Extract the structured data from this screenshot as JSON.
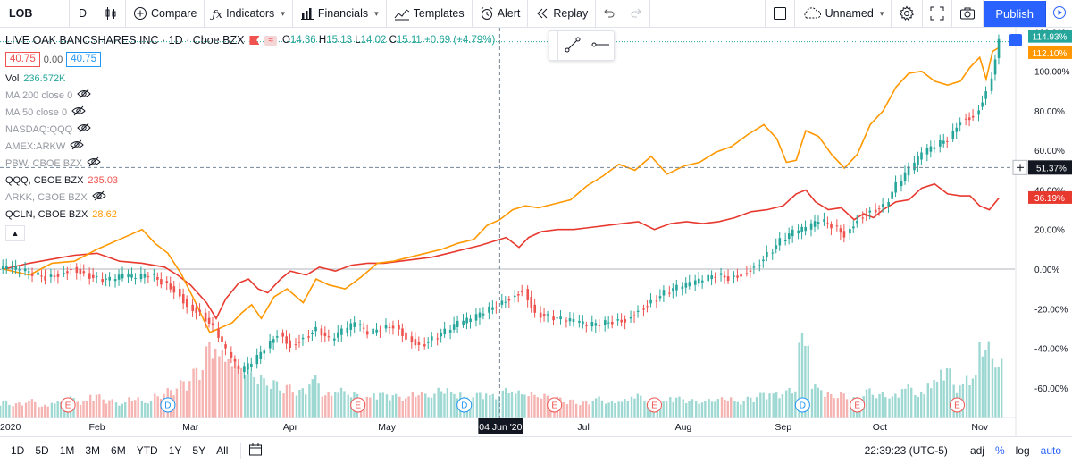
{
  "toolbar": {
    "symbol": "LOB",
    "interval": "D",
    "compare": "Compare",
    "indicators": "Indicators",
    "financials": "Financials",
    "templates": "Templates",
    "alert": "Alert",
    "replay": "Replay",
    "layout_name": "Unnamed",
    "publish": "Publish"
  },
  "legend": {
    "title": "LIVE OAK BANCSHARES INC · 1D · Cboe BZX",
    "badge": "≈",
    "ohlc": {
      "o_label": "O",
      "o": "14.36",
      "h_label": "H",
      "h": "15.13",
      "l_label": "L",
      "l": "14.02",
      "c_label": "C",
      "c": "15.11",
      "change": "+0.69 (+4.79%)"
    },
    "sell": "40.75",
    "spread": "0.00",
    "buy": "40.75",
    "indicators": [
      {
        "label": "Vol",
        "value": "236.572K",
        "on": true,
        "color": "green"
      },
      {
        "label": "MA 200 close 0",
        "value": "",
        "on": false
      },
      {
        "label": "MA 50 close 0",
        "value": "",
        "on": false
      },
      {
        "label": "NASDAQ:QQQ",
        "value": "",
        "on": false
      },
      {
        "label": "AMEX:ARKW",
        "value": "",
        "on": false
      },
      {
        "label": "PBW, CBOE BZX",
        "value": "",
        "on": false
      },
      {
        "label": "QQQ, CBOE BZX",
        "value": "235.03",
        "on": true,
        "color": "red"
      },
      {
        "label": "ARKK, CBOE BZX",
        "value": "",
        "on": false
      },
      {
        "label": "QCLN, CBOE BZX",
        "value": "28.62",
        "on": true,
        "color": "orange"
      }
    ]
  },
  "bottombar": {
    "ranges": [
      "1D",
      "5D",
      "1M",
      "3M",
      "6M",
      "YTD",
      "1Y",
      "5Y",
      "All"
    ],
    "time": "22:39:23 (UTC-5)",
    "adj": "adj",
    "pct": "%",
    "log": "log",
    "auto": "auto"
  },
  "colors": {
    "up": "#26a69a",
    "down": "#ef5350",
    "qqq": "#e8392f",
    "qcln": "#ff9800",
    "accent": "#2962ff"
  },
  "chart_data": {
    "type": "line",
    "scale": "percent",
    "ylim": [
      -75,
      122
    ],
    "y_ticks": [
      120,
      100,
      80,
      60,
      40,
      20,
      0,
      -20,
      -40,
      -60
    ],
    "y_tick_labels": [
      "120.00%",
      "100.00%",
      "80.00%",
      "60.00%",
      "40.00%",
      "20.00%",
      "0.00%",
      "-20.00%",
      "-40.00%",
      "-60.00%"
    ],
    "x_labels": [
      {
        "day": 0,
        "label": "2020"
      },
      {
        "day": 29,
        "label": "Feb"
      },
      {
        "day": 58,
        "label": "Mar"
      },
      {
        "day": 89,
        "label": "Apr"
      },
      {
        "day": 119,
        "label": "May"
      },
      {
        "day": 180,
        "label": "Jul"
      },
      {
        "day": 211,
        "label": "Aug"
      },
      {
        "day": 242,
        "label": "Sep"
      },
      {
        "day": 272,
        "label": "Oct"
      },
      {
        "day": 303,
        "label": "Nov"
      }
    ],
    "crosshair": {
      "day": 154,
      "label": "04 Jun '20",
      "y_value": 51.37,
      "y_label": "51.37%"
    },
    "last_values": [
      {
        "series": "LOB",
        "value": 114.93,
        "label": "114.93%"
      },
      {
        "series": "QCLN",
        "value": 112.1,
        "label": "112.10%"
      },
      {
        "series": "QQQ",
        "value": 36.19,
        "label": "36.19%"
      }
    ],
    "events": [
      {
        "day": 20,
        "type": "E"
      },
      {
        "day": 51,
        "type": "D"
      },
      {
        "day": 110,
        "type": "E"
      },
      {
        "day": 143,
        "type": "D"
      },
      {
        "day": 171,
        "type": "E"
      },
      {
        "day": 202,
        "type": "E"
      },
      {
        "day": 248,
        "type": "D"
      },
      {
        "day": 265,
        "type": "E"
      },
      {
        "day": 296,
        "type": "E"
      }
    ],
    "series": [
      {
        "name": "QQQ, CBOE BZX",
        "x": [
          0,
          8,
          15,
          22,
          29,
          36,
          43,
          50,
          54,
          58,
          63,
          66,
          69,
          73,
          76,
          79,
          82,
          86,
          89,
          94,
          98,
          103,
          108,
          113,
          118,
          123,
          128,
          133,
          138,
          143,
          148,
          152,
          156,
          160,
          163,
          167,
          172,
          177,
          182,
          187,
          192,
          197,
          202,
          207,
          212,
          217,
          222,
          227,
          232,
          237,
          242,
          246,
          249,
          252,
          256,
          260,
          264,
          267,
          270,
          273,
          277,
          281,
          285,
          289,
          293,
          297,
          300,
          303,
          306,
          309
        ],
        "values": [
          0,
          3,
          5,
          7,
          8,
          4,
          3,
          1,
          -3,
          -8,
          -17,
          -25,
          -15,
          -7,
          -5,
          -10,
          -12,
          -5,
          -1,
          -3,
          1,
          -1,
          2,
          3,
          3,
          4,
          5,
          6,
          8,
          10,
          12,
          14,
          16,
          11,
          16,
          19,
          20,
          20,
          21,
          22,
          23,
          24,
          20,
          23,
          24,
          23,
          24,
          26,
          29,
          30,
          32,
          38,
          40,
          34,
          30,
          31,
          25,
          28,
          26,
          30,
          34,
          35,
          41,
          43,
          38,
          37,
          37,
          32,
          30,
          36
        ]
      },
      {
        "name": "QCLN, CBOE BZX",
        "x": [
          0,
          8,
          15,
          22,
          29,
          36,
          43,
          47,
          51,
          55,
          59,
          64,
          67,
          71,
          74,
          77,
          80,
          84,
          88,
          93,
          97,
          101,
          106,
          111,
          116,
          121,
          126,
          131,
          136,
          141,
          146,
          150,
          154,
          158,
          162,
          166,
          171,
          176,
          181,
          186,
          191,
          196,
          201,
          206,
          211,
          216,
          221,
          226,
          231,
          236,
          240,
          243,
          246,
          249,
          253,
          257,
          261,
          265,
          269,
          273,
          277,
          281,
          285,
          289,
          293,
          297,
          300,
          303,
          305,
          307,
          309
        ],
        "values": [
          0,
          -3,
          3,
          4,
          10,
          15,
          20,
          13,
          8,
          -2,
          -15,
          -32,
          -30,
          -27,
          -22,
          -18,
          -25,
          -14,
          -10,
          -17,
          -5,
          -8,
          -10,
          -4,
          3,
          4,
          6,
          8,
          10,
          13,
          15,
          22,
          25,
          30,
          32,
          31,
          33,
          35,
          42,
          47,
          53,
          50,
          57,
          48,
          52,
          54,
          59,
          62,
          68,
          73,
          66,
          54,
          55,
          70,
          67,
          58,
          51,
          58,
          73,
          80,
          92,
          99,
          100,
          95,
          93,
          95,
          102,
          107,
          96,
          110,
          112
        ]
      }
    ],
    "candles": {
      "name": "LIVE OAK BANCSHARES INC",
      "x": [
        0,
        4,
        8,
        12,
        16,
        20,
        24,
        28,
        32,
        36,
        40,
        44,
        48,
        52,
        56,
        60,
        64,
        68,
        72,
        76,
        80,
        84,
        88,
        92,
        96,
        100,
        104,
        108,
        112,
        116,
        120,
        124,
        128,
        132,
        136,
        140,
        144,
        148,
        152,
        156,
        160,
        164,
        168,
        172,
        176,
        180,
        184,
        188,
        192,
        196,
        200,
        204,
        208,
        212,
        216,
        220,
        224,
        228,
        232,
        236,
        240,
        244,
        248,
        252,
        256,
        260,
        264,
        268,
        272,
        276,
        280,
        284,
        288,
        292,
        296,
        300,
        304,
        308
      ],
      "values": [
        0,
        -1,
        -3,
        -4,
        -2,
        1,
        -2,
        -5,
        -6,
        -4,
        -5,
        -3,
        -6,
        -10,
        -18,
        -22,
        -30,
        -42,
        -52,
        -48,
        -40,
        -32,
        -38,
        -34,
        -30,
        -36,
        -32,
        -28,
        -33,
        -30,
        -28,
        -34,
        -38,
        -35,
        -32,
        -28,
        -26,
        -22,
        -18,
        -14,
        -10,
        -22,
        -24,
        -26,
        -27,
        -29,
        -28,
        -26,
        -25,
        -20,
        -16,
        -12,
        -10,
        -8,
        -6,
        -3,
        -4,
        -2,
        2,
        8,
        14,
        18,
        20,
        24,
        22,
        18,
        26,
        30,
        32,
        42,
        50,
        58,
        62,
        66,
        76,
        78,
        90,
        115
      ]
    },
    "volume": {
      "x": [
        0,
        4,
        8,
        12,
        16,
        20,
        24,
        28,
        32,
        36,
        40,
        44,
        48,
        52,
        56,
        60,
        64,
        68,
        72,
        76,
        80,
        84,
        88,
        92,
        96,
        100,
        104,
        108,
        112,
        116,
        120,
        124,
        128,
        132,
        136,
        140,
        144,
        148,
        152,
        156,
        160,
        164,
        168,
        172,
        176,
        180,
        184,
        188,
        192,
        196,
        200,
        204,
        208,
        212,
        216,
        220,
        224,
        228,
        232,
        236,
        240,
        244,
        248,
        252,
        256,
        260,
        264,
        268,
        272,
        276,
        280,
        284,
        288,
        292,
        296,
        300,
        304,
        308
      ],
      "values": [
        0.2,
        0.18,
        0.22,
        0.15,
        0.2,
        0.25,
        0.2,
        0.28,
        0.22,
        0.18,
        0.24,
        0.2,
        0.28,
        0.35,
        0.45,
        0.6,
        0.9,
        0.8,
        0.7,
        0.6,
        0.5,
        0.45,
        0.4,
        0.35,
        0.5,
        0.3,
        0.35,
        0.3,
        0.25,
        0.3,
        0.28,
        0.25,
        0.3,
        0.28,
        0.35,
        0.3,
        0.25,
        0.3,
        0.28,
        0.35,
        0.32,
        0.3,
        0.28,
        0.25,
        0.22,
        0.2,
        0.25,
        0.2,
        0.22,
        0.28,
        0.22,
        0.2,
        0.25,
        0.22,
        0.2,
        0.22,
        0.24,
        0.2,
        0.25,
        0.3,
        0.3,
        0.35,
        1.0,
        0.4,
        0.3,
        0.3,
        0.25,
        0.35,
        0.3,
        0.28,
        0.4,
        0.3,
        0.45,
        0.6,
        0.4,
        0.5,
        0.9,
        0.7
      ]
    }
  }
}
